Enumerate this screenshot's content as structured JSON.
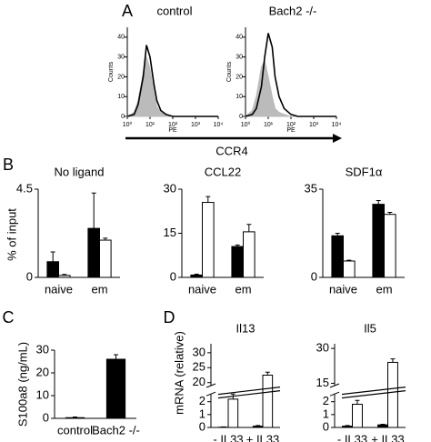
{
  "figure": {
    "panel_labels": [
      "A",
      "B",
      "C",
      "D"
    ],
    "panel_a_xlabel": "CCR4",
    "panel_b_ylabel": "% of input",
    "panel_d_ylabel": "mRNA (relative)"
  },
  "chart_data": [
    {
      "type": "histogram_curve",
      "title": "control",
      "ylabel": "Counts",
      "xlabel": "PE",
      "xscale": "log",
      "x": [
        1,
        2,
        3,
        5,
        7,
        10,
        15,
        20,
        30,
        50,
        100,
        200,
        1000,
        10000
      ],
      "series": [
        {
          "color": "#bbbbbb",
          "fill": true,
          "values": [
            0,
            2,
            8,
            22,
            30,
            24,
            12,
            5,
            2,
            1,
            0,
            0,
            0,
            0
          ]
        },
        {
          "color": "#000000",
          "fill": false,
          "values": [
            0,
            1,
            6,
            20,
            36,
            30,
            16,
            8,
            3,
            1,
            0,
            0,
            0,
            0
          ]
        }
      ],
      "xlim": [
        1,
        10000
      ],
      "xticks": [
        {
          "value": 1,
          "label": "10⁰"
        },
        {
          "value": 10,
          "label": "10¹"
        },
        {
          "value": 100,
          "label": "10²"
        },
        {
          "value": 1000,
          "label": "10³"
        },
        {
          "value": 10000,
          "label": "10⁴"
        }
      ],
      "ylim": [
        0,
        45
      ],
      "yticks": [
        0,
        10,
        20,
        30,
        40
      ]
    },
    {
      "type": "histogram_curve",
      "title": "Bach2 -/-",
      "ylabel": "Counts",
      "xlabel": "PE",
      "xscale": "log",
      "x": [
        1,
        2,
        3,
        5,
        7,
        10,
        15,
        20,
        30,
        50,
        100,
        200,
        1000,
        10000
      ],
      "series": [
        {
          "color": "#bbbbbb",
          "fill": true,
          "values": [
            0,
            3,
            10,
            25,
            28,
            20,
            10,
            4,
            2,
            1,
            0,
            0,
            0,
            0
          ]
        },
        {
          "color": "#000000",
          "fill": false,
          "values": [
            0,
            1,
            4,
            15,
            30,
            42,
            35,
            20,
            10,
            4,
            1,
            0,
            0,
            0
          ]
        }
      ],
      "xlim": [
        1,
        10000
      ],
      "xticks": [
        {
          "value": 1,
          "label": "10⁰"
        },
        {
          "value": 10,
          "label": "10¹"
        },
        {
          "value": 100,
          "label": "10²"
        },
        {
          "value": 1000,
          "label": "10³"
        },
        {
          "value": 10000,
          "label": "10⁴"
        }
      ],
      "ylim": [
        0,
        45
      ],
      "yticks": [
        0,
        10,
        20,
        30,
        40
      ]
    },
    {
      "type": "bar",
      "title": "No ligand",
      "categories": [
        "naive",
        "em"
      ],
      "series": [
        {
          "color": "#000000",
          "values": [
            0.8,
            2.5
          ],
          "errors": [
            0.5,
            1.8
          ]
        },
        {
          "color": "#ffffff",
          "values": [
            0.1,
            1.9
          ],
          "errors": [
            0.05,
            0.1
          ]
        }
      ],
      "ylim": [
        0,
        4.5
      ],
      "yticks": [
        0,
        4.5
      ]
    },
    {
      "type": "bar",
      "title": "CCL22",
      "categories": [
        "naive",
        "em"
      ],
      "series": [
        {
          "color": "#000000",
          "values": [
            0.8,
            10.5
          ],
          "errors": [
            0.3,
            0.5
          ]
        },
        {
          "color": "#ffffff",
          "values": [
            25.5,
            15.5
          ],
          "errors": [
            2,
            2.5
          ]
        }
      ],
      "ylim": [
        0,
        30
      ],
      "yticks": [
        0,
        15,
        30
      ]
    },
    {
      "type": "bar",
      "title": "SDF1α",
      "categories": [
        "naive",
        "em"
      ],
      "series": [
        {
          "color": "#000000",
          "values": [
            16.5,
            29
          ],
          "errors": [
            1,
            1.5
          ]
        },
        {
          "color": "#ffffff",
          "values": [
            6.5,
            25
          ],
          "errors": [
            0.3,
            0.8
          ]
        }
      ],
      "ylim": [
        0,
        35
      ],
      "yticks": [
        0,
        35
      ]
    },
    {
      "type": "bar",
      "ylabel": "S100a8 (ng/mL)",
      "categories": [
        "control",
        "Bach2 -/-"
      ],
      "series": [
        {
          "color": "#000000",
          "values": [
            0.3,
            26
          ],
          "errors": [
            0.3,
            2
          ]
        }
      ],
      "ylim": [
        0,
        30
      ],
      "yticks": [
        0,
        10,
        20,
        30
      ]
    },
    {
      "type": "bar",
      "title": "Il13",
      "categories": [
        "- IL33",
        "+ IL33"
      ],
      "series": [
        {
          "color": "#000000",
          "values": [
            0.02,
            0.1
          ],
          "errors": [
            0.02,
            0.05
          ]
        },
        {
          "color": "#ffffff",
          "values": [
            2.2,
            22.5
          ],
          "errors": [
            0.4,
            1
          ]
        }
      ],
      "ylim": [
        0,
        33
      ],
      "axis_break": [
        2.6,
        19
      ],
      "yticks": [
        0,
        1,
        2,
        20,
        25,
        30
      ]
    },
    {
      "type": "bar",
      "title": "Il5",
      "categories": [
        "- IL33",
        "+ IL33"
      ],
      "series": [
        {
          "color": "#000000",
          "values": [
            0.1,
            0.2
          ],
          "errors": [
            0.05,
            0.05
          ]
        },
        {
          "color": "#ffffff",
          "values": [
            1.8,
            24
          ],
          "errors": [
            0.3,
            1.5
          ]
        }
      ],
      "ylim": [
        0,
        32
      ],
      "axis_break": [
        2.6,
        14
      ],
      "yticks": [
        0,
        1,
        2,
        15,
        30
      ]
    }
  ]
}
